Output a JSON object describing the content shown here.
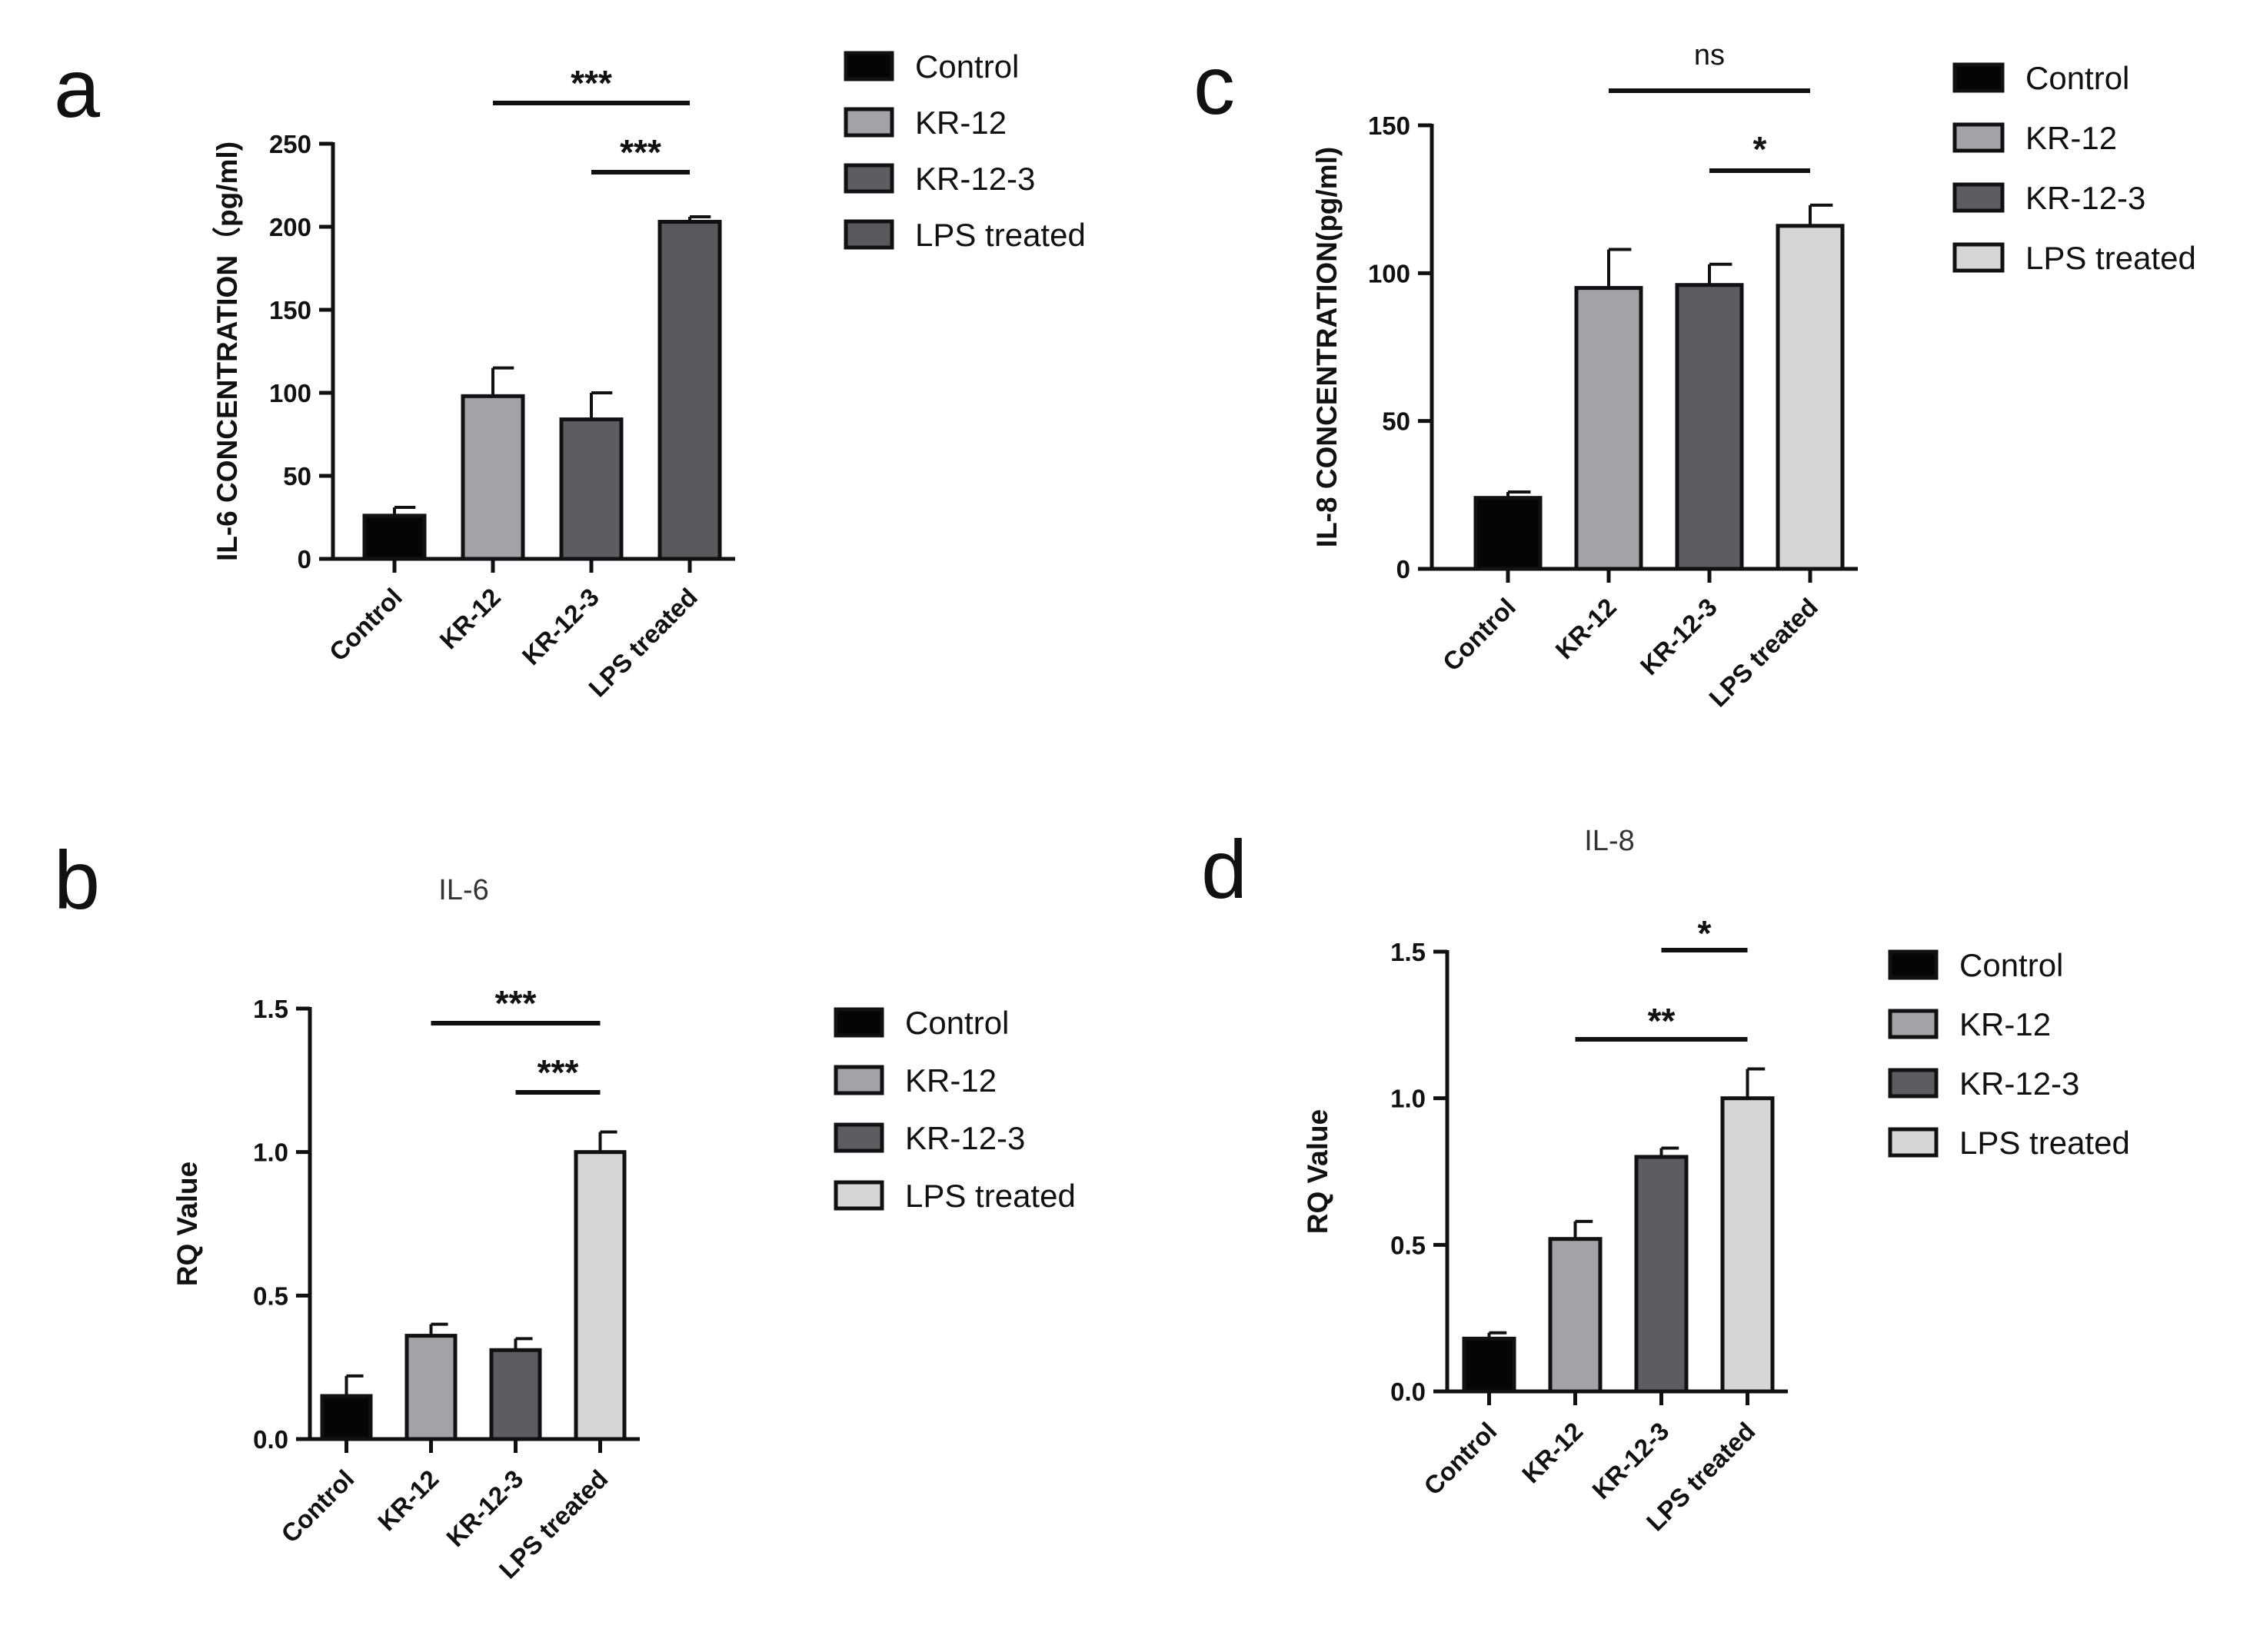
{
  "colors": {
    "Control": "#050505",
    "KR-12": "#a3a3a7",
    "KR-12-3": "#5d5d61",
    "LPS treated": "#d6d6d6",
    "LPS treated (panel a)": "#59595c"
  },
  "chart_data": [
    {
      "panel": "a",
      "type": "bar",
      "title": "",
      "ylabel": "IL-6 CONCENTRATION（pg/ml)",
      "xlabel": "",
      "categories": [
        "Control",
        "KR-12",
        "KR-12-3",
        "LPS treated"
      ],
      "values": [
        26,
        98,
        84,
        203
      ],
      "errors": [
        5,
        17,
        16,
        3
      ],
      "ylim": [
        0,
        250
      ],
      "yticks": [
        "0",
        "50",
        "100",
        "150",
        "200",
        "250"
      ],
      "legend": [
        "Control",
        "KR-12",
        "KR-12-3",
        "LPS treated"
      ],
      "significance": [
        {
          "from": "KR-12",
          "to": "LPS treated",
          "label": "***"
        },
        {
          "from": "KR-12-3",
          "to": "LPS treated",
          "label": "***"
        }
      ]
    },
    {
      "panel": "b",
      "type": "bar",
      "title": "IL-6",
      "ylabel": "RQ Value",
      "xlabel": "",
      "categories": [
        "Control",
        "KR-12",
        "KR-12-3",
        "LPS treated"
      ],
      "values": [
        0.15,
        0.36,
        0.31,
        1.0
      ],
      "errors": [
        0.07,
        0.04,
        0.04,
        0.07
      ],
      "ylim": [
        0,
        1.5
      ],
      "yticks": [
        "0.0",
        "0.5",
        "1.0",
        "1.5"
      ],
      "legend": [
        "Control",
        "KR-12",
        "KR-12-3",
        "LPS treated"
      ],
      "significance": [
        {
          "from": "KR-12",
          "to": "LPS treated",
          "label": "***"
        },
        {
          "from": "KR-12-3",
          "to": "LPS treated",
          "label": "***"
        }
      ]
    },
    {
      "panel": "c",
      "type": "bar",
      "title": "",
      "ylabel": "IL-8 CONCENTRATION(pg/ml)",
      "xlabel": "",
      "categories": [
        "Control",
        "KR-12",
        "KR-12-3",
        "LPS treated"
      ],
      "values": [
        24,
        95,
        96,
        116
      ],
      "errors": [
        2,
        13,
        7,
        7
      ],
      "ylim": [
        0,
        150
      ],
      "yticks": [
        "0",
        "50",
        "100",
        "150"
      ],
      "legend": [
        "Control",
        "KR-12",
        "KR-12-3",
        "LPS treated"
      ],
      "significance": [
        {
          "from": "KR-12",
          "to": "LPS treated",
          "label": "ns"
        },
        {
          "from": "KR-12-3",
          "to": "LPS treated",
          "label": "*"
        }
      ]
    },
    {
      "panel": "d",
      "type": "bar",
      "title": "IL-8",
      "ylabel": "RQ Value",
      "xlabel": "",
      "categories": [
        "Control",
        "KR-12",
        "KR-12-3",
        "LPS treated"
      ],
      "values": [
        0.18,
        0.52,
        0.8,
        1.0
      ],
      "errors": [
        0.02,
        0.06,
        0.03,
        0.1
      ],
      "ylim": [
        0,
        1.5
      ],
      "yticks": [
        "0.0",
        "0.5",
        "1.0",
        "1.5"
      ],
      "legend": [
        "Control",
        "KR-12",
        "KR-12-3",
        "LPS treated"
      ],
      "significance": [
        {
          "from": "KR-12-3",
          "to": "LPS treated",
          "label": "*"
        },
        {
          "from": "KR-12",
          "to": "LPS treated",
          "label": "**"
        }
      ]
    }
  ]
}
